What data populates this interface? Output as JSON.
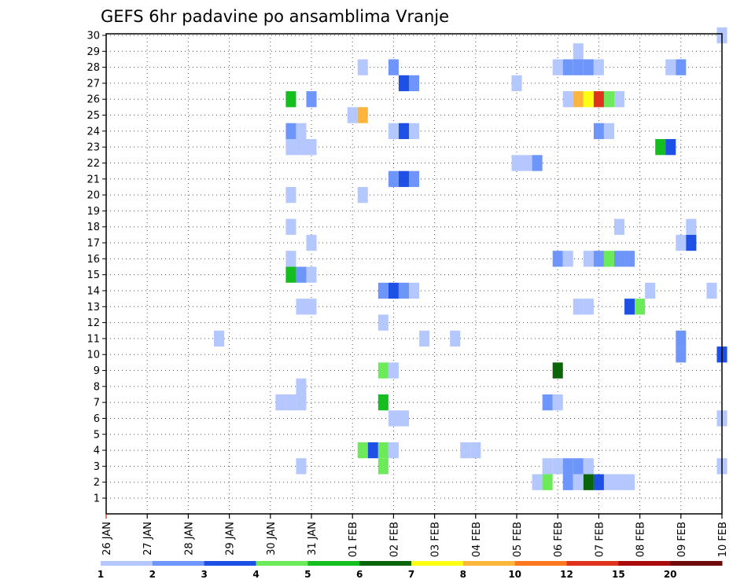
{
  "chart_data": {
    "type": "heatmap",
    "title": "GEFS 6hr padavine po ansamblima Vranje",
    "xlabel": "",
    "ylabel": "",
    "x_ticks": [
      "26 JAN",
      "27 JAN",
      "28 JAN",
      "29 JAN",
      "30 JAN",
      "31 JAN",
      "01 FEB",
      "02 FEB",
      "03 FEB",
      "04 FEB",
      "05 FEB",
      "06 FEB",
      "07 FEB",
      "08 FEB",
      "09 FEB",
      "10 FEB"
    ],
    "x_unit": "6-hour step from 26 JAN 00Z",
    "xlim": [
      0,
      60
    ],
    "y_ticks": [
      "1",
      "2",
      "3",
      "4",
      "5",
      "6",
      "7",
      "8",
      "9",
      "10",
      "11",
      "12",
      "13",
      "14",
      "15",
      "16",
      "17",
      "18",
      "19",
      "20",
      "21",
      "22",
      "23",
      "24",
      "25",
      "26",
      "27",
      "28",
      "29",
      "30"
    ],
    "ylim": [
      1,
      30
    ],
    "grid": true,
    "legend": {
      "placement": "bottom",
      "labels": [
        "1",
        "2",
        "3",
        "4",
        "5",
        "6",
        "7",
        "8",
        "10",
        "12",
        "15",
        "20"
      ],
      "colors": [
        "#b4c8ff",
        "#6e96fa",
        "#1e50e6",
        "#6cea5a",
        "#14be1e",
        "#0a640a",
        "#ffff14",
        "#ffb43c",
        "#ff781e",
        "#e1321e",
        "#aa0a0a",
        "#6e0a0a"
      ]
    },
    "cells": [
      {
        "member": 30,
        "step": 60,
        "class": 1
      },
      {
        "member": 29,
        "step": 46,
        "class": 1
      },
      {
        "member": 28,
        "step": 25,
        "class": 1
      },
      {
        "member": 28,
        "step": 28,
        "class": 2
      },
      {
        "member": 28,
        "step": 44,
        "class": 1
      },
      {
        "member": 28,
        "step": 45,
        "class": 2
      },
      {
        "member": 28,
        "step": 46,
        "class": 2
      },
      {
        "member": 28,
        "step": 47,
        "class": 2
      },
      {
        "member": 28,
        "step": 48,
        "class": 1
      },
      {
        "member": 28,
        "step": 55,
        "class": 1
      },
      {
        "member": 28,
        "step": 56,
        "class": 2
      },
      {
        "member": 27,
        "step": 29,
        "class": 3
      },
      {
        "member": 27,
        "step": 30,
        "class": 2
      },
      {
        "member": 27,
        "step": 40,
        "class": 1
      },
      {
        "member": 26,
        "step": 18,
        "class": 5
      },
      {
        "member": 26,
        "step": 20,
        "class": 2
      },
      {
        "member": 26,
        "step": 45,
        "class": 1
      },
      {
        "member": 26,
        "step": 46,
        "class": 8
      },
      {
        "member": 26,
        "step": 47,
        "class": 7
      },
      {
        "member": 26,
        "step": 48,
        "class": 10
      },
      {
        "member": 26,
        "step": 49,
        "class": 4
      },
      {
        "member": 26,
        "step": 50,
        "class": 1
      },
      {
        "member": 25,
        "step": 24,
        "class": 1
      },
      {
        "member": 25,
        "step": 25,
        "class": 8
      },
      {
        "member": 24,
        "step": 18,
        "class": 2
      },
      {
        "member": 24,
        "step": 19,
        "class": 1
      },
      {
        "member": 24,
        "step": 28,
        "class": 1
      },
      {
        "member": 24,
        "step": 29,
        "class": 3
      },
      {
        "member": 24,
        "step": 30,
        "class": 1
      },
      {
        "member": 24,
        "step": 48,
        "class": 2
      },
      {
        "member": 24,
        "step": 49,
        "class": 1
      },
      {
        "member": 23,
        "step": 18,
        "class": 1
      },
      {
        "member": 23,
        "step": 19,
        "class": 1
      },
      {
        "member": 23,
        "step": 20,
        "class": 1
      },
      {
        "member": 23,
        "step": 54,
        "class": 5
      },
      {
        "member": 23,
        "step": 55,
        "class": 3
      },
      {
        "member": 22,
        "step": 40,
        "class": 1
      },
      {
        "member": 22,
        "step": 41,
        "class": 1
      },
      {
        "member": 22,
        "step": 42,
        "class": 2
      },
      {
        "member": 21,
        "step": 28,
        "class": 2
      },
      {
        "member": 21,
        "step": 29,
        "class": 3
      },
      {
        "member": 21,
        "step": 30,
        "class": 2
      },
      {
        "member": 20,
        "step": 18,
        "class": 1
      },
      {
        "member": 20,
        "step": 25,
        "class": 1
      },
      {
        "member": 18,
        "step": 18,
        "class": 1
      },
      {
        "member": 18,
        "step": 50,
        "class": 1
      },
      {
        "member": 18,
        "step": 57,
        "class": 1
      },
      {
        "member": 17,
        "step": 20,
        "class": 1
      },
      {
        "member": 17,
        "step": 56,
        "class": 1
      },
      {
        "member": 17,
        "step": 57,
        "class": 3
      },
      {
        "member": 16,
        "step": 18,
        "class": 1
      },
      {
        "member": 16,
        "step": 44,
        "class": 2
      },
      {
        "member": 16,
        "step": 45,
        "class": 1
      },
      {
        "member": 16,
        "step": 47,
        "class": 1
      },
      {
        "member": 16,
        "step": 48,
        "class": 2
      },
      {
        "member": 16,
        "step": 49,
        "class": 4
      },
      {
        "member": 16,
        "step": 50,
        "class": 2
      },
      {
        "member": 16,
        "step": 51,
        "class": 2
      },
      {
        "member": 15,
        "step": 18,
        "class": 5
      },
      {
        "member": 15,
        "step": 19,
        "class": 2
      },
      {
        "member": 15,
        "step": 20,
        "class": 1
      },
      {
        "member": 14,
        "step": 27,
        "class": 2
      },
      {
        "member": 14,
        "step": 28,
        "class": 3
      },
      {
        "member": 14,
        "step": 29,
        "class": 2
      },
      {
        "member": 14,
        "step": 30,
        "class": 1
      },
      {
        "member": 14,
        "step": 53,
        "class": 1
      },
      {
        "member": 14,
        "step": 59,
        "class": 1
      },
      {
        "member": 13,
        "step": 19,
        "class": 1
      },
      {
        "member": 13,
        "step": 20,
        "class": 1
      },
      {
        "member": 13,
        "step": 46,
        "class": 1
      },
      {
        "member": 13,
        "step": 47,
        "class": 1
      },
      {
        "member": 13,
        "step": 51,
        "class": 3
      },
      {
        "member": 13,
        "step": 52,
        "class": 4
      },
      {
        "member": 12,
        "step": 27,
        "class": 1
      },
      {
        "member": 11,
        "step": 11,
        "class": 1
      },
      {
        "member": 11,
        "step": 31,
        "class": 1
      },
      {
        "member": 11,
        "step": 34,
        "class": 1
      },
      {
        "member": 11,
        "step": 56,
        "class": 2
      },
      {
        "member": 10,
        "step": 56,
        "class": 2
      },
      {
        "member": 10,
        "step": 60,
        "class": 3
      },
      {
        "member": 9,
        "step": 27,
        "class": 4
      },
      {
        "member": 9,
        "step": 28,
        "class": 1
      },
      {
        "member": 9,
        "step": 44,
        "class": 6
      },
      {
        "member": 8,
        "step": 19,
        "class": 1
      },
      {
        "member": 7,
        "step": 17,
        "class": 1
      },
      {
        "member": 7,
        "step": 18,
        "class": 1
      },
      {
        "member": 7,
        "step": 19,
        "class": 1
      },
      {
        "member": 7,
        "step": 27,
        "class": 5
      },
      {
        "member": 7,
        "step": 43,
        "class": 2
      },
      {
        "member": 7,
        "step": 44,
        "class": 1
      },
      {
        "member": 6,
        "step": 28,
        "class": 1
      },
      {
        "member": 6,
        "step": 29,
        "class": 1
      },
      {
        "member": 6,
        "step": 60,
        "class": 1
      },
      {
        "member": 4,
        "step": 25,
        "class": 4
      },
      {
        "member": 4,
        "step": 26,
        "class": 3
      },
      {
        "member": 4,
        "step": 27,
        "class": 4
      },
      {
        "member": 4,
        "step": 28,
        "class": 1
      },
      {
        "member": 4,
        "step": 35,
        "class": 1
      },
      {
        "member": 4,
        "step": 36,
        "class": 1
      },
      {
        "member": 3,
        "step": 19,
        "class": 1
      },
      {
        "member": 3,
        "step": 27,
        "class": 4
      },
      {
        "member": 3,
        "step": 43,
        "class": 1
      },
      {
        "member": 3,
        "step": 44,
        "class": 1
      },
      {
        "member": 3,
        "step": 45,
        "class": 2
      },
      {
        "member": 3,
        "step": 46,
        "class": 2
      },
      {
        "member": 3,
        "step": 47,
        "class": 1
      },
      {
        "member": 3,
        "step": 60,
        "class": 1
      },
      {
        "member": 2,
        "step": 42,
        "class": 1
      },
      {
        "member": 2,
        "step": 43,
        "class": 4
      },
      {
        "member": 2,
        "step": 45,
        "class": 2
      },
      {
        "member": 2,
        "step": 46,
        "class": 1
      },
      {
        "member": 2,
        "step": 47,
        "class": 6
      },
      {
        "member": 2,
        "step": 48,
        "class": 3
      },
      {
        "member": 2,
        "step": 49,
        "class": 1
      },
      {
        "member": 2,
        "step": 50,
        "class": 1
      },
      {
        "member": 2,
        "step": 51,
        "class": 1
      }
    ]
  }
}
